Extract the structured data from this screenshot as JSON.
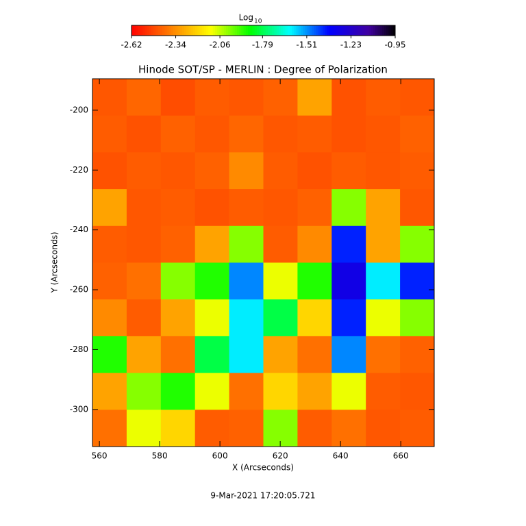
{
  "chart_data": {
    "type": "heatmap",
    "title": "Hinode SOT/SP - MERLIN : Degree of Polarization",
    "x_label": "X (Arcseconds)",
    "y_label": "Y (Arcseconds)",
    "footer": "9-Mar-2021 17:20:05.721",
    "xlim": [
      557.7,
      671.1
    ],
    "ylim": [
      -312.4,
      -189.5
    ],
    "xticks": [
      560,
      580,
      600,
      620,
      640,
      660
    ],
    "yticks": [
      -200,
      -220,
      -240,
      -260,
      -280,
      -300
    ],
    "colormap": "rainbow-reversed",
    "colorbar": {
      "label": "Log",
      "label_subscript": "10",
      "lim": [
        -2.62,
        -0.95
      ],
      "ticks": [
        -2.62,
        -2.34,
        -2.06,
        -1.79,
        -1.51,
        -1.23,
        -0.95
      ]
    },
    "z": [
      [
        -2.45,
        -2.42,
        -2.47,
        -2.44,
        -2.45,
        -2.43,
        -2.3,
        -2.46,
        -2.44,
        -2.45
      ],
      [
        -2.44,
        -2.46,
        -2.43,
        -2.45,
        -2.42,
        -2.45,
        -2.44,
        -2.46,
        -2.45,
        -2.43
      ],
      [
        -2.46,
        -2.44,
        -2.45,
        -2.43,
        -2.35,
        -2.44,
        -2.46,
        -2.44,
        -2.45,
        -2.44
      ],
      [
        -2.3,
        -2.45,
        -2.44,
        -2.46,
        -2.44,
        -2.45,
        -2.43,
        -2.0,
        -2.3,
        -2.45
      ],
      [
        -2.44,
        -2.45,
        -2.43,
        -2.3,
        -2.0,
        -2.44,
        -2.35,
        -1.4,
        -2.3,
        -2.0
      ],
      [
        -2.43,
        -2.4,
        -2.0,
        -1.9,
        -1.5,
        -2.1,
        -1.9,
        -1.3,
        -1.6,
        -1.4
      ],
      [
        -2.35,
        -2.44,
        -2.3,
        -2.1,
        -1.6,
        -1.8,
        -2.2,
        -1.4,
        -2.1,
        -2.0
      ],
      [
        -1.9,
        -2.3,
        -2.4,
        -1.8,
        -1.6,
        -2.3,
        -2.4,
        -1.5,
        -2.4,
        -2.43
      ],
      [
        -2.3,
        -2.0,
        -1.9,
        -2.1,
        -2.4,
        -2.2,
        -2.3,
        -2.1,
        -2.44,
        -2.45
      ],
      [
        -2.4,
        -2.1,
        -2.2,
        -2.44,
        -2.43,
        -2.0,
        -2.44,
        -2.4,
        -2.45,
        -2.44
      ]
    ]
  }
}
